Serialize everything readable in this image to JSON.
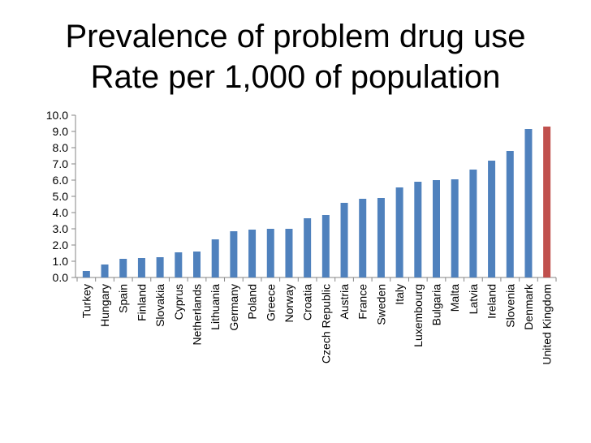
{
  "slide": {
    "title_line1": "Prevalence of problem drug use",
    "title_line2": "Rate per 1,000 of population"
  },
  "colors": {
    "default_bar": "#4F81BD",
    "highlight_bar": "#C0504D",
    "axis": "#868686"
  },
  "chart_data": {
    "type": "bar",
    "title": "Prevalence of problem drug use Rate per 1,000 of population",
    "xlabel": "",
    "ylabel": "",
    "ylim": [
      0,
      10
    ],
    "yticks": [
      0,
      1,
      2,
      3,
      4,
      5,
      6,
      7,
      8,
      9,
      10
    ],
    "ytick_labels": [
      "0.0",
      "1.0",
      "2.0",
      "3.0",
      "4.0",
      "5.0",
      "6.0",
      "7.0",
      "8.0",
      "9.0",
      "10.0"
    ],
    "grid": false,
    "categories": [
      "Turkey",
      "Hungary",
      "Spain",
      "Finland",
      "Slovakia",
      "Cyprus",
      "Netherlands",
      "Lithuania",
      "Germany",
      "Poland",
      "Greece",
      "Norway",
      "Croatia",
      "Czech Republic",
      "Austria",
      "France",
      "Sweden",
      "Italy",
      "Luxembourg",
      "Bulgaria",
      "Malta",
      "Latvia",
      "Ireland",
      "Slovenia",
      "Denmark",
      "United Kingdom"
    ],
    "values": [
      0.4,
      0.8,
      1.15,
      1.2,
      1.25,
      1.55,
      1.6,
      2.35,
      2.85,
      2.95,
      3.0,
      3.0,
      3.65,
      3.85,
      4.6,
      4.85,
      4.9,
      5.55,
      5.9,
      6.0,
      6.05,
      6.65,
      7.2,
      7.8,
      9.15,
      9.3
    ],
    "highlight": [
      "United Kingdom"
    ]
  }
}
